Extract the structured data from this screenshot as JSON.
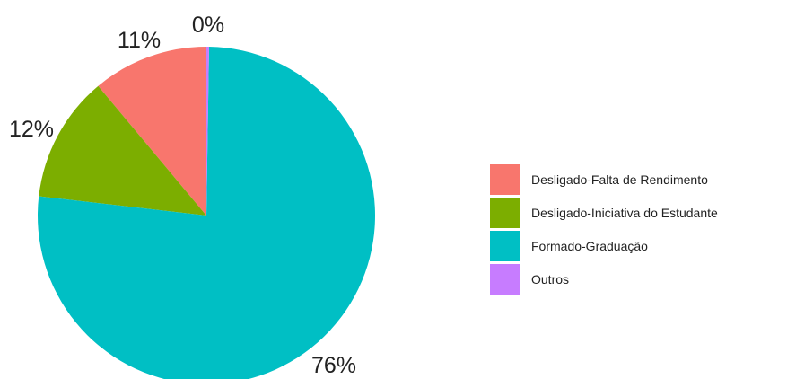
{
  "chart_data": {
    "type": "pie",
    "title": "",
    "slices": [
      {
        "label": "Desligado-Falta de Rendimento",
        "value": 11,
        "pct_label": "11%",
        "color": "#F8766D"
      },
      {
        "label": "Desligado-Iniciativa do Estudante",
        "value": 12,
        "pct_label": "12%",
        "color": "#7CAE00"
      },
      {
        "label": "Formado-Graduação",
        "value": 76,
        "pct_label": "76%",
        "color": "#00BFC4"
      },
      {
        "label": "Outros",
        "value": 0.25,
        "pct_label": "0%",
        "color": "#C77CFF"
      }
    ],
    "legend_position": "right",
    "direction": "counterclockwise",
    "start": "top"
  }
}
